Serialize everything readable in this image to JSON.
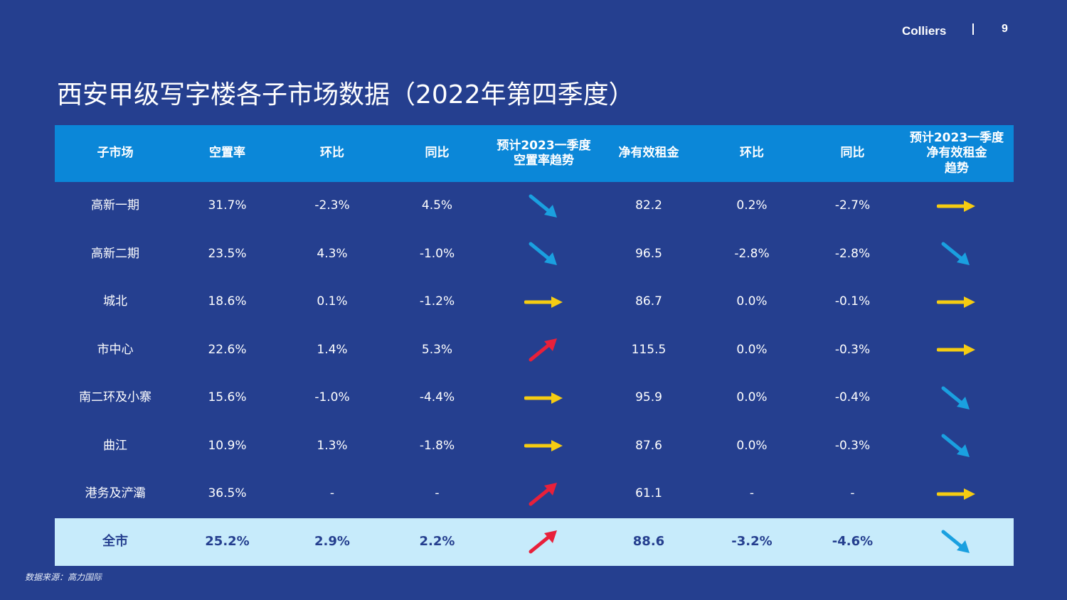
{
  "header": {
    "brand": "Colliers",
    "page_number": "9"
  },
  "title": "西安甲级写字楼各子市场数据（2022年第四季度）",
  "colors": {
    "background": "#253f8f",
    "header_bg": "#0b87d8",
    "total_bg": "#c7ebfb",
    "arrow_up": "#e8203a",
    "arrow_flat": "#f5cc12",
    "arrow_down": "#1aa0e0"
  },
  "table": {
    "columns": [
      [
        "子市场"
      ],
      [
        "空置率"
      ],
      [
        "环比"
      ],
      [
        "同比"
      ],
      [
        "预计2023一季度",
        "空置率趋势"
      ],
      [
        "净有效租金"
      ],
      [
        "环比"
      ],
      [
        "同比"
      ],
      [
        "预计2023一季度",
        "净有效租金",
        "趋势"
      ]
    ],
    "rows": [
      {
        "submarket": "高新一期",
        "vacancy": "31.7%",
        "vacancy_qoq": "-2.3%",
        "vacancy_yoy": "4.5%",
        "vacancy_trend": "down",
        "rent": "82.2",
        "rent_qoq": "0.2%",
        "rent_yoy": "-2.7%",
        "rent_trend": "flat"
      },
      {
        "submarket": "高新二期",
        "vacancy": "23.5%",
        "vacancy_qoq": "4.3%",
        "vacancy_yoy": "-1.0%",
        "vacancy_trend": "down",
        "rent": "96.5",
        "rent_qoq": "-2.8%",
        "rent_yoy": "-2.8%",
        "rent_trend": "down"
      },
      {
        "submarket": "城北",
        "vacancy": "18.6%",
        "vacancy_qoq": "0.1%",
        "vacancy_yoy": "-1.2%",
        "vacancy_trend": "flat",
        "rent": "86.7",
        "rent_qoq": "0.0%",
        "rent_yoy": "-0.1%",
        "rent_trend": "flat"
      },
      {
        "submarket": "市中心",
        "vacancy": "22.6%",
        "vacancy_qoq": "1.4%",
        "vacancy_yoy": "5.3%",
        "vacancy_trend": "up",
        "rent": "115.5",
        "rent_qoq": "0.0%",
        "rent_yoy": "-0.3%",
        "rent_trend": "flat"
      },
      {
        "submarket": "南二环及小寨",
        "vacancy": "15.6%",
        "vacancy_qoq": "-1.0%",
        "vacancy_yoy": "-4.4%",
        "vacancy_trend": "flat",
        "rent": "95.9",
        "rent_qoq": "0.0%",
        "rent_yoy": "-0.4%",
        "rent_trend": "down"
      },
      {
        "submarket": "曲江",
        "vacancy": "10.9%",
        "vacancy_qoq": "1.3%",
        "vacancy_yoy": "-1.8%",
        "vacancy_trend": "flat",
        "rent": "87.6",
        "rent_qoq": "0.0%",
        "rent_yoy": "-0.3%",
        "rent_trend": "down"
      },
      {
        "submarket": "港务及浐灞",
        "vacancy": "36.5%",
        "vacancy_qoq": "-",
        "vacancy_yoy": "-",
        "vacancy_trend": "up",
        "rent": "61.1",
        "rent_qoq": "-",
        "rent_yoy": "-",
        "rent_trend": "flat"
      }
    ],
    "total": {
      "submarket": "全市",
      "vacancy": "25.2%",
      "vacancy_qoq": "2.9%",
      "vacancy_yoy": "2.2%",
      "vacancy_trend": "up",
      "rent": "88.6",
      "rent_qoq": "-3.2%",
      "rent_yoy": "-4.6%",
      "rent_trend": "down"
    }
  },
  "footer": {
    "source": "数据来源：高力国际"
  }
}
